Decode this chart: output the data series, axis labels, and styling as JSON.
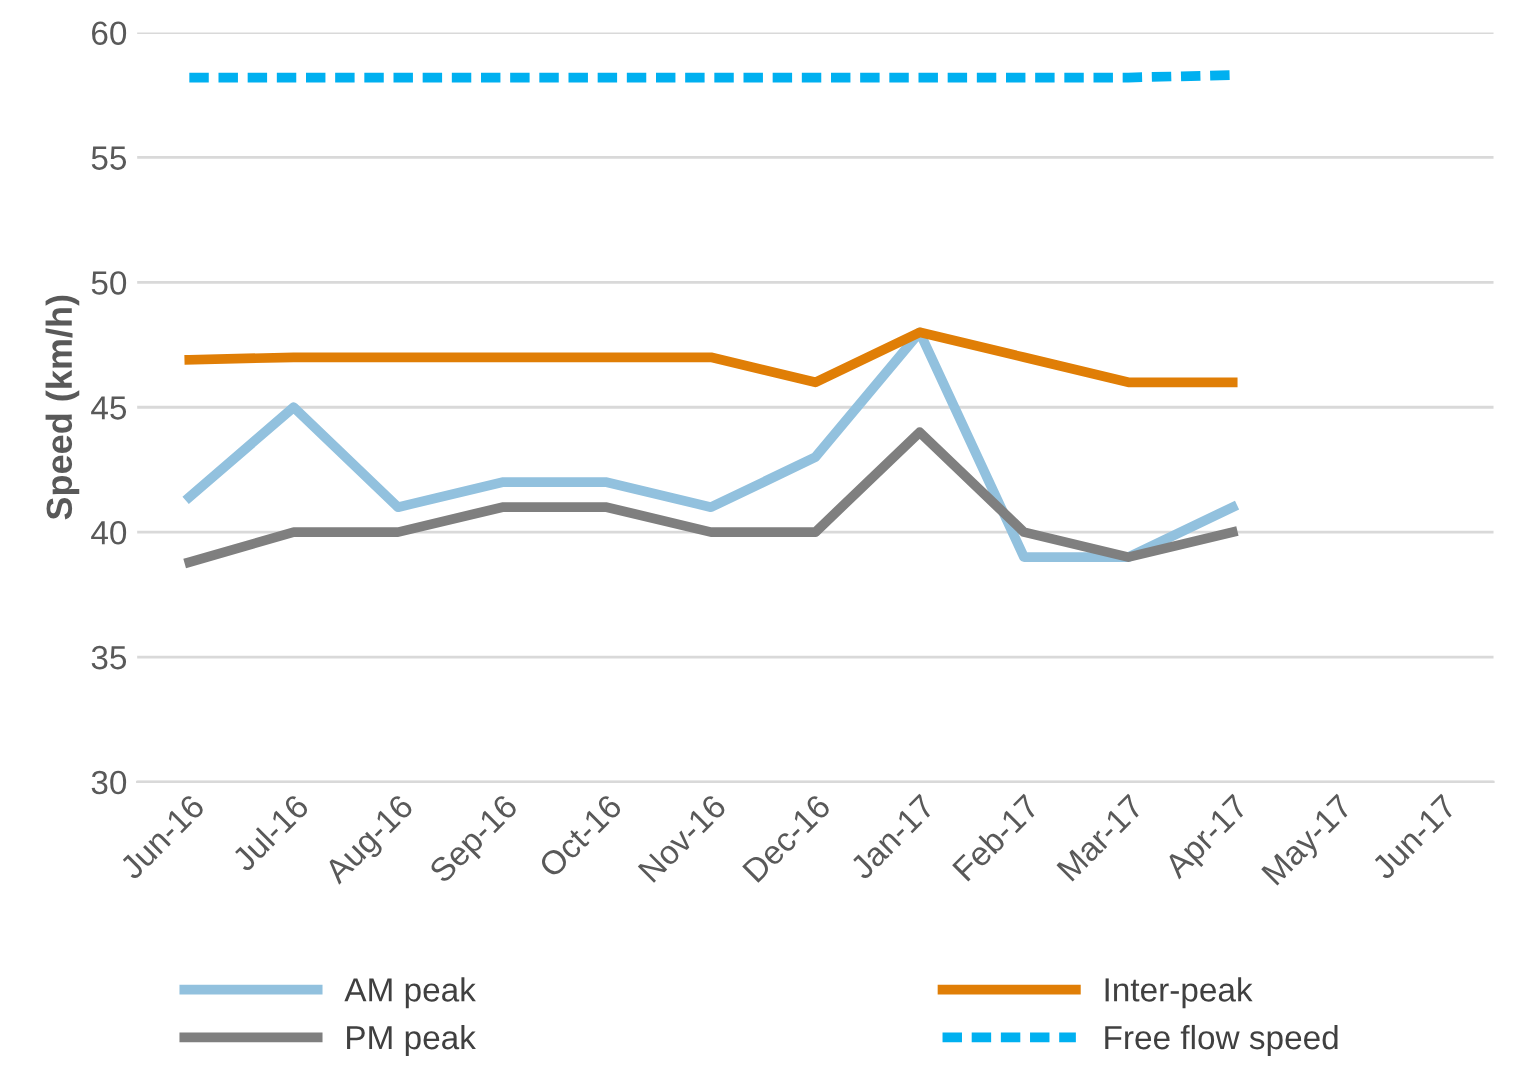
{
  "chart_data": {
    "type": "line",
    "ylabel": "Speed (km/h)",
    "categories": [
      "Jun-16",
      "Jul-16",
      "Aug-16",
      "Sep-16",
      "Oct-16",
      "Nov-16",
      "Dec-16",
      "Jan-17",
      "Feb-17",
      "Mar-17",
      "Apr-17",
      "May-17",
      "Jun-17"
    ],
    "series": [
      {
        "name": "AM peak",
        "color": "#92c1de",
        "values": [
          41.4,
          45,
          41,
          42,
          42,
          41,
          43,
          48,
          39,
          39,
          41,
          null,
          null
        ]
      },
      {
        "name": "Inter-peak",
        "color": "#e07e06",
        "values": [
          46.9,
          47,
          47,
          47,
          47,
          47,
          46,
          48,
          47,
          46,
          46,
          null,
          null
        ]
      },
      {
        "name": "PM peak",
        "color": "#7f7f7f",
        "values": [
          38.8,
          40,
          40,
          41,
          41,
          40,
          40,
          44,
          40,
          39,
          40,
          null,
          null
        ]
      },
      {
        "name": "Free flow speed",
        "color": "#00b0f0",
        "line_style": "dashed",
        "values": [
          58.2,
          58.2,
          58.2,
          58.2,
          58.2,
          58.2,
          58.2,
          58.2,
          58.2,
          58.2,
          58.3,
          null,
          null
        ]
      }
    ],
    "ylim": [
      30,
      60
    ],
    "yticks": [
      30,
      35,
      40,
      45,
      50,
      55,
      60
    ],
    "grid": "y",
    "legend": "bottom",
    "marker": "none",
    "line_style": "solid"
  }
}
